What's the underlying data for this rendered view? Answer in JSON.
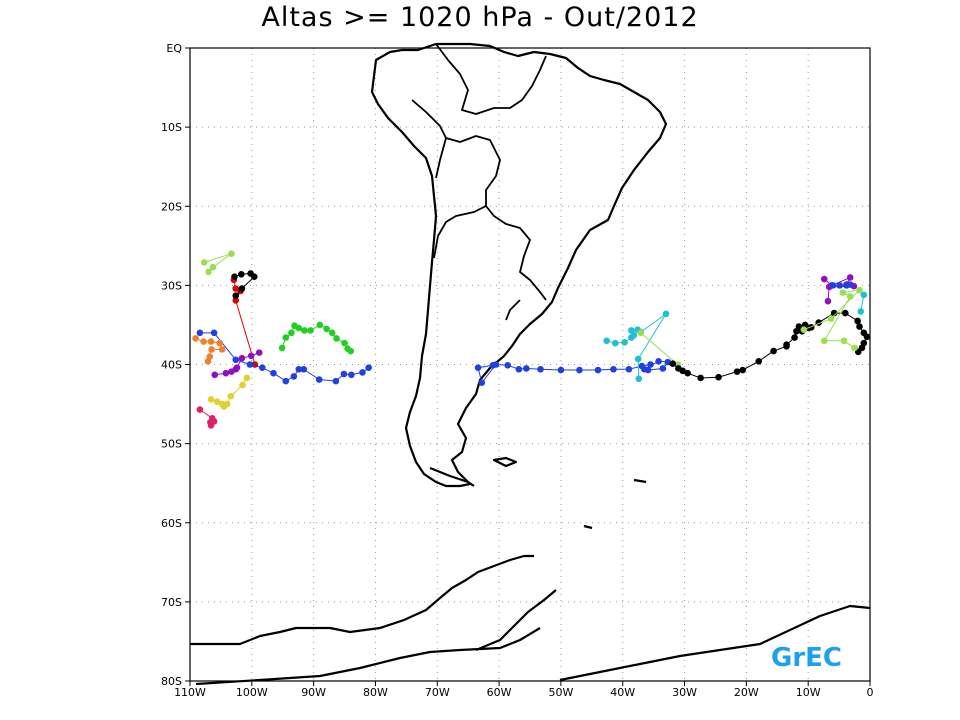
{
  "title": "Altas >= 1020 hPa - Out/2012",
  "logo_text": "GrEC",
  "logo_color": "#1ea0f0",
  "map": {
    "projection": "equirectangular",
    "lon_range": [
      -110,
      0
    ],
    "lat_range": [
      -80,
      0
    ],
    "grid": "dotted",
    "lat_labels": [
      "EQ",
      "10S",
      "20S",
      "30S",
      "40S",
      "50S",
      "60S",
      "70S",
      "80S"
    ],
    "lat_values": [
      0,
      -10,
      -20,
      -30,
      -40,
      -50,
      -60,
      -70,
      -80
    ],
    "lon_labels": [
      "110W",
      "100W",
      "90W",
      "80W",
      "70W",
      "60W",
      "50W",
      "40W",
      "30W",
      "20W",
      "10W",
      "0"
    ],
    "lon_values": [
      -110,
      -100,
      -90,
      -80,
      -70,
      -60,
      -50,
      -40,
      -30,
      -20,
      -10,
      0
    ]
  },
  "tracks": [
    {
      "color": "#98e050",
      "points": [
        [
          -107.7,
          -27.1
        ],
        [
          -103.3,
          -26.0
        ],
        [
          -106.3,
          -27.7
        ],
        [
          -107.0,
          -28.3
        ]
      ]
    },
    {
      "color": "#e00000",
      "points": [
        [
          -102.9,
          -29.3
        ],
        [
          -102.6,
          -30.4
        ],
        [
          -101.8,
          -30.7
        ],
        [
          -102.6,
          -31.9
        ],
        [
          -99.5,
          -40.0
        ]
      ]
    },
    {
      "color": "#000000",
      "points": [
        [
          -102.8,
          -28.9
        ],
        [
          -101.7,
          -28.6
        ],
        [
          -100.2,
          -28.5
        ],
        [
          -99.6,
          -28.9
        ],
        [
          -101.6,
          -30.4
        ],
        [
          -102.6,
          -31.3
        ]
      ]
    },
    {
      "color": "#2040e0",
      "points": [
        [
          -108.4,
          -36.0
        ],
        [
          -106.1,
          -36.0
        ],
        [
          -102.6,
          -39.4
        ],
        [
          -100.3,
          -40.0
        ],
        [
          -98.3,
          -40.4
        ],
        [
          -96.5,
          -41.1
        ],
        [
          -94.5,
          -42.1
        ],
        [
          -93.2,
          -41.5
        ],
        [
          -92.4,
          -40.6
        ],
        [
          -91.6,
          -40.6
        ],
        [
          -89.1,
          -41.9
        ],
        [
          -86.4,
          -42.1
        ],
        [
          -85.1,
          -41.2
        ],
        [
          -83.9,
          -41.3
        ],
        [
          -82.1,
          -41.0
        ],
        [
          -81.1,
          -40.4
        ]
      ]
    },
    {
      "color": "#9010c0",
      "points": [
        [
          -106.0,
          -41.3
        ],
        [
          -104.2,
          -41.1
        ],
        [
          -103.3,
          -40.9
        ],
        [
          -102.6,
          -40.6
        ],
        [
          -102.4,
          -40.4
        ],
        [
          -101.6,
          -39.2
        ],
        [
          -100.1,
          -38.9
        ],
        [
          -98.8,
          -38.5
        ]
      ]
    },
    {
      "color": "#f08030",
      "points": [
        [
          -109.1,
          -36.7
        ],
        [
          -107.8,
          -37.1
        ],
        [
          -106.6,
          -37.1
        ],
        [
          -105.2,
          -37.3
        ],
        [
          -104.8,
          -38.1
        ],
        [
          -106.5,
          -38.1
        ],
        [
          -106.8,
          -39.0
        ],
        [
          -107.1,
          -39.6
        ]
      ]
    },
    {
      "color": "#e0d030",
      "points": [
        [
          -100.8,
          -41.7
        ],
        [
          -101.5,
          -42.6
        ],
        [
          -103.4,
          -44.0
        ],
        [
          -104.0,
          -45.0
        ],
        [
          -104.8,
          -45.0
        ],
        [
          -106.6,
          -44.4
        ],
        [
          -105.6,
          -44.7
        ],
        [
          -104.5,
          -45.3
        ]
      ]
    },
    {
      "color": "#e0206a",
      "points": [
        [
          -108.4,
          -45.7
        ],
        [
          -106.4,
          -46.8
        ],
        [
          -106.7,
          -47.3
        ],
        [
          -106.6,
          -47.7
        ],
        [
          -106.1,
          -47.2
        ]
      ]
    },
    {
      "color": "#20d020",
      "points": [
        [
          -95.1,
          -37.9
        ],
        [
          -94.5,
          -36.6
        ],
        [
          -93.6,
          -36.0
        ],
        [
          -93.1,
          -35.1
        ],
        [
          -92.4,
          -35.4
        ],
        [
          -91.5,
          -35.7
        ],
        [
          -90.5,
          -35.7
        ],
        [
          -89.0,
          -35.0
        ],
        [
          -87.9,
          -35.5
        ],
        [
          -87.0,
          -36.0
        ],
        [
          -86.3,
          -36.7
        ],
        [
          -85.0,
          -37.3
        ],
        [
          -84.5,
          -38.0
        ],
        [
          -84.0,
          -38.3
        ]
      ]
    },
    {
      "color": "#2040e0",
      "points": [
        [
          -61.0,
          -40.1
        ],
        [
          -63.4,
          -40.4
        ],
        [
          -62.8,
          -42.3
        ],
        [
          -60.5,
          -40.0
        ],
        [
          -58.6,
          -40.1
        ],
        [
          -56.8,
          -40.6
        ],
        [
          -55.6,
          -40.5
        ],
        [
          -53.3,
          -40.6
        ],
        [
          -50.0,
          -40.7
        ],
        [
          -47.0,
          -40.7
        ],
        [
          -44.0,
          -40.7
        ],
        [
          -41.5,
          -40.6
        ],
        [
          -39.0,
          -40.6
        ],
        [
          -36.9,
          -40.2
        ],
        [
          -35.5,
          -40.0
        ],
        [
          -35.9,
          -40.7
        ],
        [
          -33.5,
          -40.5
        ],
        [
          -32.7,
          -39.7
        ],
        [
          -34.2,
          -39.6
        ],
        [
          -36.5,
          -40.6
        ]
      ]
    },
    {
      "color": "#20c0d0",
      "points": [
        [
          -42.6,
          -37.0
        ],
        [
          -41.2,
          -37.3
        ],
        [
          -39.7,
          -37.2
        ],
        [
          -38.6,
          -36.6
        ],
        [
          -38.2,
          -36.3
        ],
        [
          -38.6,
          -35.7
        ],
        [
          -37.6,
          -35.6
        ],
        [
          -37.1,
          -35.9
        ],
        [
          -33.0,
          -33.6
        ],
        [
          -37.5,
          -39.3
        ],
        [
          -37.4,
          -41.8
        ]
      ]
    },
    {
      "color": "#98e050",
      "points": [
        [
          -37.1,
          -36.0
        ],
        [
          -31.1,
          -40.0
        ]
      ]
    },
    {
      "color": "#000000",
      "points": [
        [
          -31.9,
          -39.9
        ],
        [
          -31.0,
          -40.5
        ],
        [
          -30.3,
          -40.8
        ],
        [
          -29.5,
          -41.1
        ],
        [
          -27.4,
          -41.7
        ],
        [
          -24.5,
          -41.6
        ],
        [
          -21.5,
          -40.9
        ],
        [
          -20.6,
          -40.7
        ],
        [
          -18.0,
          -39.6
        ],
        [
          -15.6,
          -38.3
        ],
        [
          -13.5,
          -37.7
        ],
        [
          -13.5,
          -37.5
        ],
        [
          -12.2,
          -36.6
        ],
        [
          -11.9,
          -35.8
        ],
        [
          -11.0,
          -35.8
        ],
        [
          -11.5,
          -35.2
        ],
        [
          -10.5,
          -35.0
        ],
        [
          -9.9,
          -35.4
        ],
        [
          -9.5,
          -35.3
        ],
        [
          -8.3,
          -34.7
        ],
        [
          -5.8,
          -33.5
        ],
        [
          -4.0,
          -33.5
        ],
        [
          -2.0,
          -34.5
        ],
        [
          -1.7,
          -35.2
        ],
        [
          -1.0,
          -36.0
        ],
        [
          -0.5,
          -36.5
        ],
        [
          -1.0,
          -37.3
        ],
        [
          -1.3,
          -37.9
        ],
        [
          -1.9,
          -38.4
        ]
      ]
    },
    {
      "color": "#98e050",
      "points": [
        [
          -10.7,
          -35.6
        ],
        [
          -6.3,
          -34.2
        ],
        [
          -1.7,
          -30.6
        ],
        [
          -4.4,
          -30.9
        ],
        [
          -3.2,
          -31.4
        ],
        [
          -7.4,
          -37.0
        ],
        [
          -4.2,
          -37.0
        ],
        [
          -2.5,
          -37.9
        ]
      ]
    },
    {
      "color": "#20c0d0",
      "points": [
        [
          -1.0,
          -31.2
        ],
        [
          -1.5,
          -33.3
        ]
      ]
    },
    {
      "color": "#9010c0",
      "points": [
        [
          -7.4,
          -29.2
        ],
        [
          -6.2,
          -30.0
        ],
        [
          -3.2,
          -29.0
        ],
        [
          -3.8,
          -29.9
        ],
        [
          -2.6,
          -30.1
        ],
        [
          -6.6,
          -30.2
        ],
        [
          -6.8,
          -32.0
        ]
      ]
    },
    {
      "color": "#2040e0",
      "points": [
        [
          -6.0,
          -30.0
        ],
        [
          -4.9,
          -30.0
        ],
        [
          -3.8,
          -30.0
        ],
        [
          -3.2,
          -29.9
        ]
      ]
    }
  ]
}
